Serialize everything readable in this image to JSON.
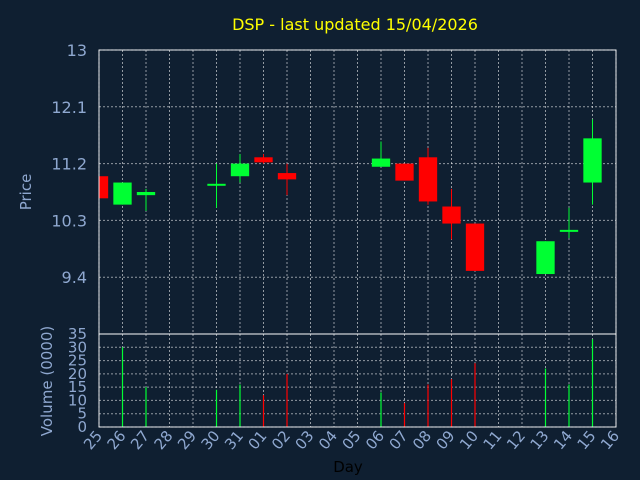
{
  "chart_data": [
    {
      "type": "candlestick",
      "title": "DSP - last updated 15/04/2026",
      "ylabel": "Price",
      "ylim": [
        8.5,
        13.0
      ],
      "yticks": [
        "13",
        "12.1",
        "11.2",
        "10.3",
        "9.4"
      ],
      "ytick_values": [
        13.0,
        12.1,
        11.2,
        10.3,
        9.4
      ],
      "grid": true,
      "up_color": "#00ff33",
      "down_color": "#ff0000",
      "categories": [
        "25",
        "26",
        "27",
        "28",
        "29",
        "30",
        "31",
        "01",
        "02",
        "03",
        "04",
        "05",
        "06",
        "07",
        "08",
        "09",
        "10",
        "11",
        "12",
        "13",
        "14",
        "15",
        "16"
      ],
      "candles": [
        {
          "x": "25",
          "open": 11.0,
          "high": 11.0,
          "low": 10.65,
          "close": 10.65
        },
        {
          "x": "26",
          "open": 10.55,
          "high": 10.9,
          "low": 10.55,
          "close": 10.9
        },
        {
          "x": "27",
          "open": 10.7,
          "high": 10.8,
          "low": 10.45,
          "close": 10.75
        },
        {
          "x": "30",
          "open": 10.85,
          "high": 11.2,
          "low": 10.5,
          "close": 10.88
        },
        {
          "x": "31",
          "open": 11.0,
          "high": 11.35,
          "low": 10.9,
          "close": 11.2
        },
        {
          "x": "01",
          "open": 11.3,
          "high": 11.35,
          "low": 11.2,
          "close": 11.22
        },
        {
          "x": "02",
          "open": 11.05,
          "high": 11.2,
          "low": 10.7,
          "close": 10.95
        },
        {
          "x": "06",
          "open": 11.15,
          "high": 11.55,
          "low": 11.15,
          "close": 11.28
        },
        {
          "x": "07",
          "open": 11.2,
          "high": 11.2,
          "low": 10.95,
          "close": 10.93
        },
        {
          "x": "08",
          "open": 11.3,
          "high": 11.45,
          "low": 10.55,
          "close": 10.6
        },
        {
          "x": "09",
          "open": 10.52,
          "high": 10.8,
          "low": 10.0,
          "close": 10.25
        },
        {
          "x": "10",
          "open": 10.25,
          "high": 10.25,
          "low": 9.5,
          "close": 9.5
        },
        {
          "x": "13",
          "open": 9.45,
          "high": 9.97,
          "low": 9.45,
          "close": 9.97
        },
        {
          "x": "14",
          "open": 10.12,
          "high": 10.5,
          "low": 10.02,
          "close": 10.15
        },
        {
          "x": "15",
          "open": 10.9,
          "high": 11.9,
          "low": 10.55,
          "close": 11.6
        }
      ]
    },
    {
      "type": "bar",
      "ylabel": "Volume (0000)",
      "xlabel": "Day",
      "ylim": [
        0,
        35
      ],
      "yticks": [
        "35",
        "30",
        "25",
        "20",
        "15",
        "10",
        "5",
        "0"
      ],
      "ytick_values": [
        35,
        30,
        25,
        20,
        15,
        10,
        5,
        0
      ],
      "grid": true,
      "categories": [
        "25",
        "26",
        "27",
        "28",
        "29",
        "30",
        "31",
        "01",
        "02",
        "03",
        "04",
        "05",
        "06",
        "07",
        "08",
        "09",
        "10",
        "11",
        "12",
        "13",
        "14",
        "15",
        "16"
      ],
      "bars": [
        {
          "x": "26",
          "value": 30,
          "color": "#00ff33"
        },
        {
          "x": "27",
          "value": 15,
          "color": "#00ff33"
        },
        {
          "x": "30",
          "value": 14,
          "color": "#00ff33"
        },
        {
          "x": "31",
          "value": 16,
          "color": "#00ff33"
        },
        {
          "x": "01",
          "value": 12,
          "color": "#ff0000"
        },
        {
          "x": "02",
          "value": 20,
          "color": "#ff0000"
        },
        {
          "x": "06",
          "value": 13,
          "color": "#00ff33"
        },
        {
          "x": "07",
          "value": 9,
          "color": "#ff0000"
        },
        {
          "x": "08",
          "value": 16,
          "color": "#ff0000"
        },
        {
          "x": "09",
          "value": 18,
          "color": "#ff0000"
        },
        {
          "x": "10",
          "value": 24,
          "color": "#ff0000"
        },
        {
          "x": "13",
          "value": 22,
          "color": "#00ff33"
        },
        {
          "x": "14",
          "value": 16,
          "color": "#00ff33"
        },
        {
          "x": "15",
          "value": 33,
          "color": "#00ff33"
        }
      ]
    }
  ]
}
